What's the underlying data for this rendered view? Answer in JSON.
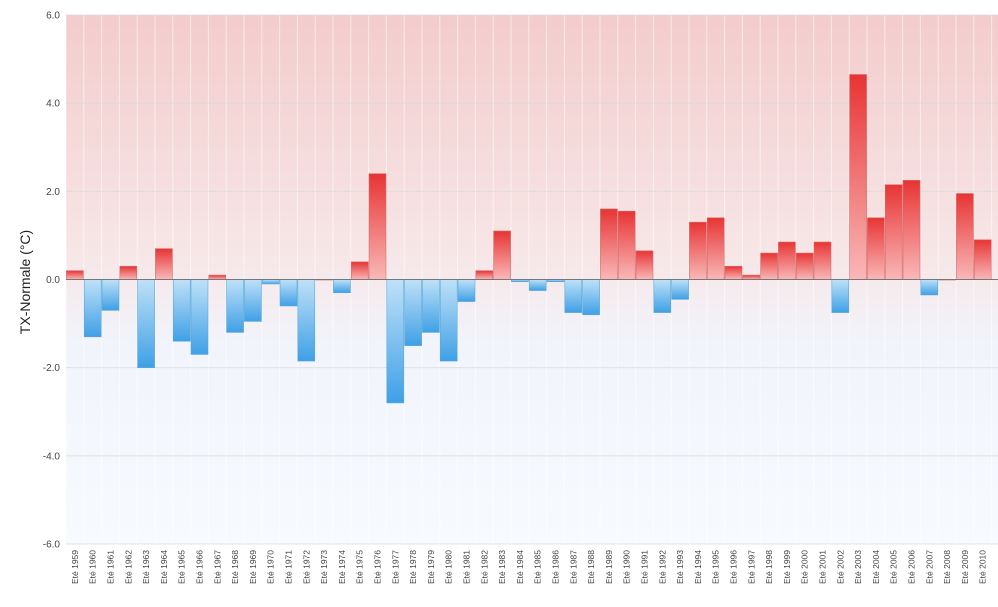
{
  "chart_data": {
    "type": "bar",
    "title": "",
    "xlabel": "",
    "ylabel": "TX-Normale (°C)",
    "ylim": [
      -6.0,
      6.0
    ],
    "yticks": [
      "-6.0",
      "-4.0",
      "-2.0",
      "0.0",
      "2.0",
      "4.0",
      "6.0"
    ],
    "grid": "on",
    "legend": "none",
    "colors": {
      "positive": "#e83a3a",
      "negative": "#4aa8e8",
      "zero_line": "#777777"
    },
    "categories": [
      "Eté 1959",
      "Eté 1960",
      "Eté 1961",
      "Eté 1962",
      "Eté 1963",
      "Eté 1964",
      "Eté 1965",
      "Eté 1966",
      "Eté 1967",
      "Eté 1968",
      "Eté 1969",
      "Eté 1970",
      "Eté 1971",
      "Eté 1972",
      "Eté 1973",
      "Eté 1974",
      "Eté 1975",
      "Eté 1976",
      "Eté 1977",
      "Eté 1978",
      "Eté 1979",
      "Eté 1980",
      "Eté 1981",
      "Eté 1982",
      "Eté 1983",
      "Eté 1984",
      "Eté 1985",
      "Eté 1986",
      "Eté 1987",
      "Eté 1988",
      "Eté 1989",
      "Eté 1990",
      "Eté 1991",
      "Eté 1992",
      "Eté 1993",
      "Eté 1994",
      "Eté 1995",
      "Eté 1996",
      "Eté 1997",
      "Eté 1998",
      "Eté 1999",
      "Eté 2000",
      "Eté 2001",
      "Eté 2002",
      "Eté 2003",
      "Eté 2004",
      "Eté 2005",
      "Eté 2006",
      "Eté 2007",
      "Eté 2008",
      "Eté 2009",
      "Eté 2010"
    ],
    "values": [
      0.2,
      -1.3,
      -0.7,
      0.3,
      -2.0,
      0.7,
      -1.4,
      -1.7,
      0.1,
      -1.2,
      -0.95,
      -0.1,
      -0.6,
      -1.85,
      0.0,
      -0.3,
      0.4,
      2.4,
      -2.8,
      -1.5,
      -1.2,
      -1.85,
      -0.5,
      0.2,
      1.1,
      -0.05,
      -0.25,
      -0.05,
      -0.75,
      -0.8,
      1.6,
      1.55,
      0.65,
      -0.75,
      -0.45,
      1.3,
      1.4,
      0.3,
      0.1,
      0.6,
      0.85,
      0.6,
      0.85,
      -0.75,
      4.65,
      1.4,
      2.15,
      2.25,
      -0.35,
      0.0,
      1.95,
      0.9
    ]
  }
}
